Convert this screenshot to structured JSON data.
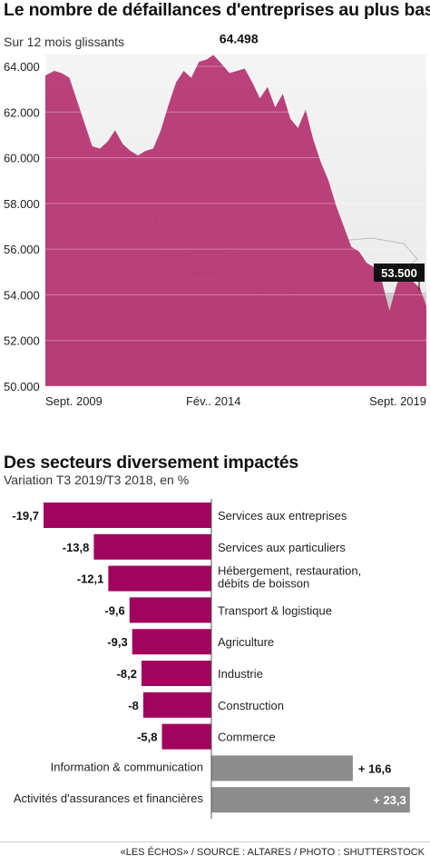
{
  "chart_data": [
    {
      "type": "area",
      "title": "Le nombre de défaillances d'entreprises au plus bas",
      "subtitle": "Sur 12 mois glissants",
      "ylim": [
        50000,
        64600
      ],
      "y_ticks": [
        "64.000",
        "62.000",
        "60.000",
        "58.000",
        "56.000",
        "54.000",
        "52.000",
        "50.000"
      ],
      "y_tick_values": [
        64000,
        62000,
        60000,
        58000,
        56000,
        54000,
        52000,
        50000
      ],
      "x_tick_labels": [
        "Sept. 2009",
        "Fév.. 2014",
        "Sept. 2019"
      ],
      "x_tick_values": [
        2009.67,
        2014.08,
        2019.67
      ],
      "x_range": [
        2009.67,
        2019.67
      ],
      "annotations": [
        {
          "label": "64.498",
          "x": 2014.08,
          "y": 64498
        },
        {
          "label": "53.500",
          "x": 2019.67,
          "y": 53500,
          "boxed": true
        }
      ],
      "background": "photo of an XL Airways airplane, tinted",
      "fill_color": "#b5336f",
      "series": [
        {
          "x": [
            2009.67,
            2009.9,
            2010.1,
            2010.3,
            2010.5,
            2010.7,
            2010.9,
            2011.1,
            2011.3,
            2011.5,
            2011.7,
            2011.9,
            2012.1,
            2012.3,
            2012.5,
            2012.7,
            2012.9,
            2013.1,
            2013.3,
            2013.5,
            2013.7,
            2013.9,
            2014.08,
            2014.3,
            2014.5,
            2014.7,
            2014.9,
            2015.1,
            2015.3,
            2015.5,
            2015.7,
            2015.9,
            2016.1,
            2016.3,
            2016.5,
            2016.7,
            2016.9,
            2017.1,
            2017.3,
            2017.5,
            2017.7,
            2017.9,
            2018.1,
            2018.3,
            2018.5,
            2018.7,
            2018.9,
            2019.1,
            2019.3,
            2019.5,
            2019.67
          ],
          "y": [
            63600,
            63800,
            63700,
            63500,
            62500,
            61500,
            60500,
            60400,
            60700,
            61200,
            60600,
            60300,
            60100,
            60300,
            60400,
            61200,
            62300,
            63300,
            63800,
            63500,
            64200,
            64300,
            64498,
            64100,
            63700,
            63800,
            63900,
            63300,
            62600,
            63100,
            62200,
            62800,
            61700,
            61300,
            62100,
            60800,
            59800,
            59000,
            57900,
            57000,
            56100,
            55900,
            55400,
            55200,
            54600,
            53300,
            54500,
            54900,
            54600,
            54300,
            53500
          ]
        }
      ]
    },
    {
      "type": "bar",
      "orientation": "horizontal",
      "title": "Des secteurs diversement impactés",
      "subtitle": "Variation T3 2019/T3 2018, en %",
      "categories": [
        "Services aux entreprises",
        "Services aux particuliers",
        "Hébergement, restauration, débits de boisson",
        "Transport & logistique",
        "Agriculture",
        "Industrie",
        "Construction",
        "Commerce",
        "Information & communication",
        "Activités d'assurances et financières"
      ],
      "category_lines": [
        [
          "Services aux entreprises"
        ],
        [
          "Services aux particuliers"
        ],
        [
          "Hébergement, restauration,",
          "débits de boisson"
        ],
        [
          "Transport & logistique"
        ],
        [
          "Agriculture"
        ],
        [
          "Industrie"
        ],
        [
          "Construction"
        ],
        [
          "Commerce"
        ],
        [
          "Information & communication"
        ],
        [
          "Activités d'assurances et financières"
        ]
      ],
      "values": [
        -19.7,
        -13.8,
        -12.1,
        -9.6,
        -9.3,
        -8.2,
        -8,
        -5.8,
        16.6,
        23.3
      ],
      "value_labels": [
        "-19,7",
        "-13,8",
        "-12,1",
        "-9,6",
        "-9,3",
        "-8,2",
        "-8",
        "-5,8",
        "+ 16,6",
        "+ 23,3"
      ],
      "negative_color": "#a0045c",
      "positive_color": "#8c8c8c",
      "xlim": [
        -19.7,
        23.3
      ]
    }
  ],
  "footer": "«LES ÉCHOS» / SOURCE  : ALTARES / PHOTO : SHUTTERSTOCK"
}
